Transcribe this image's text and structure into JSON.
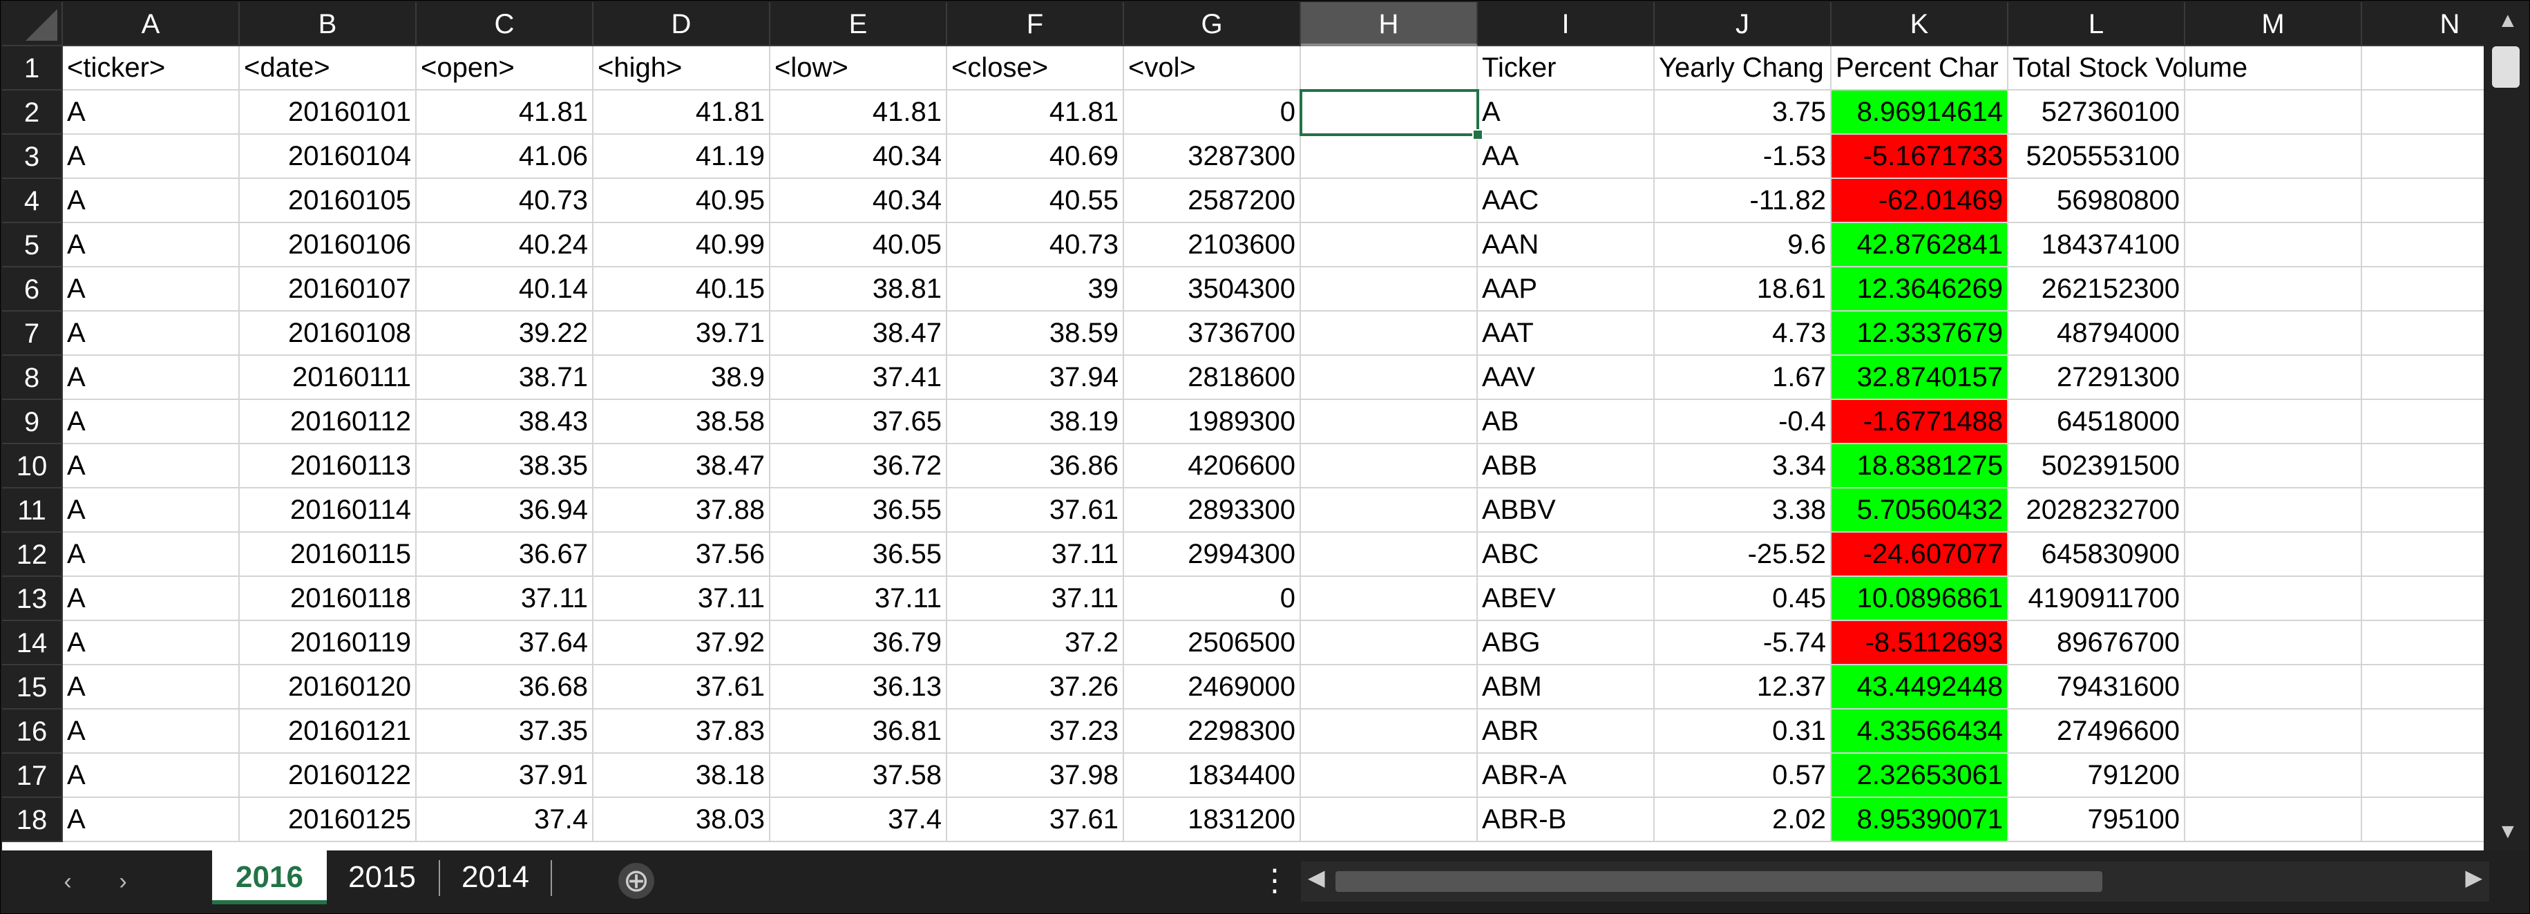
{
  "columns": [
    "A",
    "B",
    "C",
    "D",
    "E",
    "F",
    "G",
    "H",
    "I",
    "J",
    "K",
    "L",
    "M",
    "N"
  ],
  "rows": [
    [
      "<ticker>",
      "<date>",
      "<open>",
      "<high>",
      "<low>",
      "<close>",
      "<vol>",
      "",
      "Ticker",
      "Yearly Chang",
      "Percent Char",
      "Total Stock Volume",
      "",
      ""
    ],
    [
      "A",
      "20160101",
      "41.81",
      "41.81",
      "41.81",
      "41.81",
      "0",
      "",
      "A",
      "3.75",
      "8.96914614",
      "527360100",
      "",
      ""
    ],
    [
      "A",
      "20160104",
      "41.06",
      "41.19",
      "40.34",
      "40.69",
      "3287300",
      "",
      "AA",
      "-1.53",
      "-5.1671733",
      "5205553100",
      "",
      ""
    ],
    [
      "A",
      "20160105",
      "40.73",
      "40.95",
      "40.34",
      "40.55",
      "2587200",
      "",
      "AAC",
      "-11.82",
      "-62.01469",
      "56980800",
      "",
      ""
    ],
    [
      "A",
      "20160106",
      "40.24",
      "40.99",
      "40.05",
      "40.73",
      "2103600",
      "",
      "AAN",
      "9.6",
      "42.8762841",
      "184374100",
      "",
      ""
    ],
    [
      "A",
      "20160107",
      "40.14",
      "40.15",
      "38.81",
      "39",
      "3504300",
      "",
      "AAP",
      "18.61",
      "12.3646269",
      "262152300",
      "",
      ""
    ],
    [
      "A",
      "20160108",
      "39.22",
      "39.71",
      "38.47",
      "38.59",
      "3736700",
      "",
      "AAT",
      "4.73",
      "12.3337679",
      "48794000",
      "",
      ""
    ],
    [
      "A",
      "20160111",
      "38.71",
      "38.9",
      "37.41",
      "37.94",
      "2818600",
      "",
      "AAV",
      "1.67",
      "32.8740157",
      "27291300",
      "",
      ""
    ],
    [
      "A",
      "20160112",
      "38.43",
      "38.58",
      "37.65",
      "38.19",
      "1989300",
      "",
      "AB",
      "-0.4",
      "-1.6771488",
      "64518000",
      "",
      ""
    ],
    [
      "A",
      "20160113",
      "38.35",
      "38.47",
      "36.72",
      "36.86",
      "4206600",
      "",
      "ABB",
      "3.34",
      "18.8381275",
      "502391500",
      "",
      ""
    ],
    [
      "A",
      "20160114",
      "36.94",
      "37.88",
      "36.55",
      "37.61",
      "2893300",
      "",
      "ABBV",
      "3.38",
      "5.70560432",
      "2028232700",
      "",
      ""
    ],
    [
      "A",
      "20160115",
      "36.67",
      "37.56",
      "36.55",
      "37.11",
      "2994300",
      "",
      "ABC",
      "-25.52",
      "-24.607077",
      "645830900",
      "",
      ""
    ],
    [
      "A",
      "20160118",
      "37.11",
      "37.11",
      "37.11",
      "37.11",
      "0",
      "",
      "ABEV",
      "0.45",
      "10.0896861",
      "4190911700",
      "",
      ""
    ],
    [
      "A",
      "20160119",
      "37.64",
      "37.92",
      "36.79",
      "37.2",
      "2506500",
      "",
      "ABG",
      "-5.74",
      "-8.5112693",
      "89676700",
      "",
      ""
    ],
    [
      "A",
      "20160120",
      "36.68",
      "37.61",
      "36.13",
      "37.26",
      "2469000",
      "",
      "ABM",
      "12.37",
      "43.4492448",
      "79431600",
      "",
      ""
    ],
    [
      "A",
      "20160121",
      "37.35",
      "37.83",
      "36.81",
      "37.23",
      "2298300",
      "",
      "ABR",
      "0.31",
      "4.33566434",
      "27496600",
      "",
      ""
    ],
    [
      "A",
      "20160122",
      "37.91",
      "38.18",
      "37.58",
      "37.98",
      "1834400",
      "",
      "ABR-A",
      "0.57",
      "2.32653061",
      "791200",
      "",
      ""
    ],
    [
      "A",
      "20160125",
      "37.4",
      "38.03",
      "37.4",
      "37.61",
      "1831200",
      "",
      "ABR-B",
      "2.02",
      "8.95390071",
      "795100",
      "",
      ""
    ]
  ],
  "percent_fill": [
    "",
    "green",
    "red",
    "red",
    "green",
    "green",
    "green",
    "green",
    "red",
    "green",
    "green",
    "red",
    "green",
    "red",
    "green",
    "green",
    "green",
    "green"
  ],
  "selected_cell": "H2",
  "sheet_tabs": [
    "2016",
    "2015",
    "2014"
  ],
  "active_tab": "2016",
  "colors": {
    "positive_fill": "#00ff00",
    "negative_fill": "#ff0000",
    "accent": "#217346"
  },
  "icons": {
    "scroll_left": "‹",
    "scroll_right": "›",
    "new_sheet": "⊕",
    "more_options": "⋮",
    "scroll_up": "▲",
    "scroll_down": "▼",
    "h_left": "◀",
    "h_right": "▶"
  }
}
